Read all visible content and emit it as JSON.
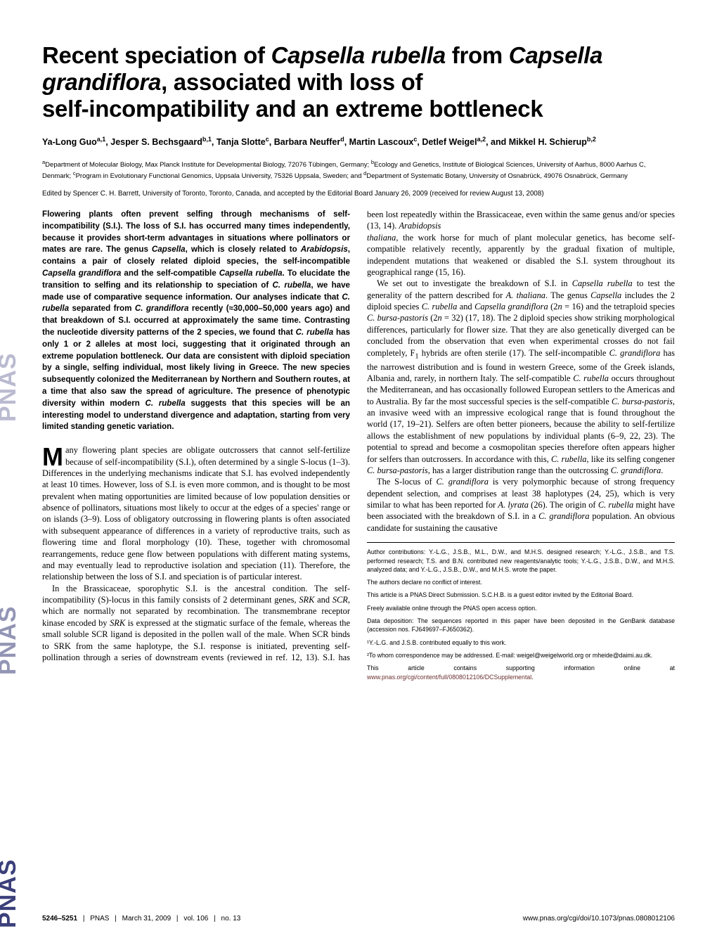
{
  "journal": {
    "sidebar_text": "PNAS PNAS PNAS",
    "sidebar_fill": "#3b3f7a"
  },
  "title": {
    "line1_a": "Recent speciation of ",
    "line1_b_ital": "Capsella rubella",
    "line1_c": " from ",
    "line1_d_ital": "Capsella",
    "line2_a_ital": "grandiflora",
    "line2_b": ", associated with loss of",
    "line3": "self-incompatibility and an extreme bottleneck"
  },
  "authors_html": "Ya-Long Guo<sup>a,1</sup>, Jesper S. Bechsgaard<sup>b,1</sup>, Tanja Slotte<sup>c</sup>, Barbara Neuffer<sup>d</sup>, Martin Lascoux<sup>c</sup>, Detlef Weigel<sup>a,2</sup>, and Mikkel H. Schierup<sup>b,2</sup>",
  "affiliations_html": "<sup>a</sup>Department of Molecular Biology, Max Planck Institute for Developmental Biology, 72076 Tübingen, Germany; <sup>b</sup>Ecology and Genetics, Institute of Biological Sciences, University of Aarhus, 8000 Aarhus C, Denmark; <sup>c</sup>Program in Evolutionary Functional Genomics, Uppsala University, 75326 Uppsala, Sweden; and <sup>d</sup>Department of Systematic Botany, University of Osnabrück, 49076 Osnabrück, Germany",
  "edited": "Edited by Spencer C. H. Barrett, University of Toronto, Toronto, Canada, and accepted by the Editorial Board January 26, 2009 (received for review August 13, 2008)",
  "abstract_html": "Flowering plants often prevent selfing through mechanisms of self-incompatibility (S.I.). The loss of S.I. has occurred many times independently, because it provides short-term advantages in situations where pollinators or mates are rare. The genus <span class='ital'>Capsella</span>, which is closely related to <span class='ital'>Arabidopsis</span>, contains a pair of closely related diploid species, the self-incompatible <span class='ital'>Capsella grandiflora</span> and the self-compatible <span class='ital'>Capsella rubella</span>. To elucidate the transition to selfing and its relationship to speciation of <span class='ital'>C. rubella</span>, we have made use of comparative sequence information. Our analyses indicate that <span class='ital'>C. rubella</span> separated from <span class='ital'>C. grandiflora</span> recently (<span class='approx'>≈30,000–50,000 years ago</span>) and that breakdown of S.I. occurred at approximately the same time. Contrasting the nucleotide diversity patterns of the 2 species, we found that <span class='ital'>C. rubella</span> has only 1 or 2 alleles at most loci, suggesting that it originated through an extreme population bottleneck. Our data are consistent with diploid speciation by a single, selfing individual, most likely living in Greece. The new species subsequently colonized the Mediterranean by Northern and Southern routes, at a time that also saw the spread of agriculture. The presence of phenotypic diversity within modern <span class='ital'>C. rubella</span> suggests that this species will be an interesting model to understand divergence and adaptation, starting from very limited standing genetic variation.",
  "body": {
    "p1_drop": "M",
    "p1": "any flowering plant species are obligate outcrossers that cannot self-fertilize because of self-incompatibility (S.I.), often determined by a single S-locus (1–3). Differences in the underlying mechanisms indicate that S.I. has evolved independently at least 10 times. However, loss of S.I. is even more common, and is thought to be most prevalent when mating opportunities are limited because of low population densities or absence of pollinators, situations most likely to occur at the edges of a species' range or on islands (3–9). Loss of obligatory outcrossing in flowering plants is often associated with subsequent appearance of differences in a variety of reproductive traits, such as flowering time and floral morphology (10). These, together with chromosomal rearrangements, reduce gene flow between populations with different mating systems, and may eventually lead to reproductive isolation and speciation (11). Therefore, the relationship between the loss of S.I. and speciation is of particular interest.",
    "p2_html": "In the Brassicaceae, sporophytic S.I. is the ancestral condition. The self-incompatibility (S)-locus in this family consists of 2 determinant genes, <span class='ital'>SRK</span> and <span class='ital'>SCR</span>, which are normally not separated by recombination. The transmembrane receptor kinase encoded by <span class='ital'>SRK</span> is expressed at the stigmatic surface of the female, whereas the small soluble SCR ligand is deposited in the pollen wall of the male. When SCR binds to SRK from the same haplotype, the S.I. response is initiated, preventing self-pollination through a series of downstream events (reviewed in ref. 12, 13). S.I. has been lost repeatedly within the Brassicaceae, even within the same genus and/or species (13, 14). <span class='ital'>Arabidopsis</span>",
    "p3_html": "<span class='ital'>thaliana</span>, the work horse for much of plant molecular genetics, has become self-compatible relatively recently, apparently by the gradual fixation of multiple, independent mutations that weakened or disabled the S.I. system throughout its geographical range (15, 16).",
    "p4_html": "We set out to investigate the breakdown of S.I. in <span class='ital'>Capsella rubella</span> to test the generality of the pattern described for <span class='ital'>A. thaliana</span>. The genus <span class='ital'>Capsella</span> includes the 2 diploid species <span class='ital'>C. rubella</span> and <span class='ital'>Capsella grandiflora</span> (2<span class='ital'>n</span> = 16) and the tetraploid species <span class='ital'>C. bursa-pastoris</span> (2<span class='ital'>n</span> = 32) (17, 18). The 2 diploid species show striking morphological differences, particularly for flower size. That they are also genetically diverged can be concluded from the observation that even when experimental crosses do not fail completely, F<sub>1</sub> hybrids are often sterile (17). The self-incompatible <span class='ital'>C. grandiflora</span> has the narrowest distribution and is found in western Greece, some of the Greek islands, Albania and, rarely, in northern Italy. The self-compatible <span class='ital'>C. rubella</span> occurs throughout the Mediterranean, and has occasionally followed European settlers to the Americas and to Australia. By far the most successful species is the self-compatible <span class='ital'>C. bursa-pastoris</span>, an invasive weed with an impressive ecological range that is found throughout the world (17, 19–21). Selfers are often better pioneers, because the ability to self-fertilize allows the establishment of new populations by individual plants (6–9, 22, 23). The potential to spread and become a cosmopolitan species therefore often appears higher for selfers than outcrossers. In accordance with this, <span class='ital'>C. rubella</span>, like its selfing congener <span class='ital'>C. bursa-pastoris</span>, has a larger distribution range than the outcrossing <span class='ital'>C. grandiflora</span>.",
    "p5_html": "The S-locus of <span class='ital'>C. grandiflora</span> is very polymorphic because of strong frequency dependent selection, and comprises at least 38 haplotypes (24, 25), which is very similar to what has been reported for <span class='ital'>A. lyrata</span> (26). The origin of <span class='ital'>C. rubella</span> might have been associated with the breakdown of S.I. in a <span class='ital'>C. grandiflora</span> population. An obvious candidate for sustaining the causative"
  },
  "notes": {
    "contrib": "Author contributions: Y.-L.G., J.S.B., M.L., D.W., and M.H.S. designed research; Y.-L.G., J.S.B., and T.S. performed research; T.S. and B.N. contributed new reagents/analytic tools; Y.-L.G., J.S.B., D.W., and M.H.S. analyzed data; and Y.-L.G., J.S.B., D.W., and M.H.S. wrote the paper.",
    "conflict": "The authors declare no conflict of interest.",
    "submission": "This article is a PNAS Direct Submission. S.C.H.B. is a guest editor invited by the Editorial Board.",
    "open": "Freely available online through the PNAS open access option.",
    "data": "Data deposition: The sequences reported in this paper have been deposited in the GenBank database (accession nos. FJ649697–FJ650362).",
    "eq": "¹Y.-L.G. and J.S.B. contributed equally to this work.",
    "corr": "²To whom correspondence may be addressed. E-mail: weigel@weigelworld.org or mheide@daimi.au.dk.",
    "supp_a": "This article contains supporting information online at ",
    "supp_link": "www.pnas.org/cgi/content/full/0808012106/DCSupplemental",
    "supp_b": "."
  },
  "footer": {
    "pages": "5246–5251",
    "journal": "PNAS",
    "date": "March 31, 2009",
    "vol": "vol. 106",
    "no": "no. 13",
    "doi": "www.pnas.org/cgi/doi/10.1073/pnas.0808012106"
  },
  "colors": {
    "link": "#6b2f2f",
    "sidebar": "#3b3f7a"
  }
}
